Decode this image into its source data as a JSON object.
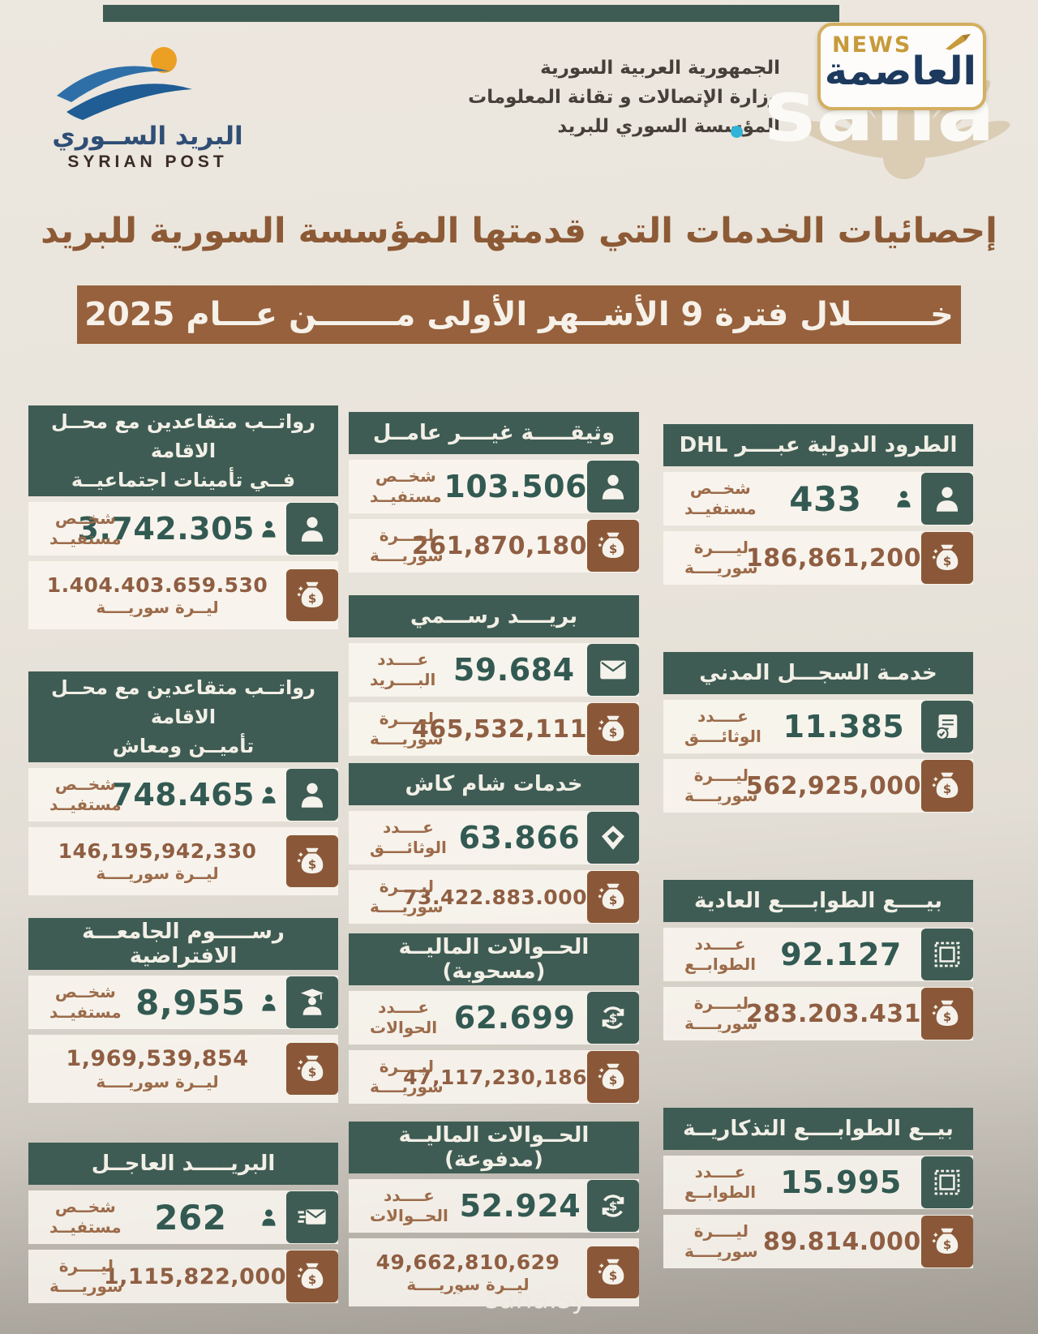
{
  "logo": {
    "arabic": "البريد الســوري",
    "english": "SYRIAN POST"
  },
  "gov": {
    "line1": "الجمهورية العربية السورية",
    "line2": "وزارة الإتصالات و تقانة المعلومات",
    "line3": "المؤسسة السوري للبريد"
  },
  "watermark": {
    "sana": "sana",
    "news": "NEWS",
    "alasima": "العاصمة"
  },
  "title": {
    "line1": "إحصائيات الخدمات التي قدمتها المؤسسة السورية للبريد",
    "line2": "خـــــــلال فترة 9 الأشــهر الأولى مـــــــن عـــام 2025"
  },
  "footer": {
    "link": "sana.sy"
  },
  "colors": {
    "teal": "#3e5c54",
    "brown": "#8a5838",
    "title_brown": "#8d5a36",
    "bar_brown": "#96613c"
  },
  "columns": [
    {
      "id": "left",
      "cards": [
        {
          "header": [
            "رواتــب متقاعدين مع محــل الاقامة",
            "فــي تأمينات اجتماعيــة"
          ],
          "rows": [
            {
              "label": [
                "شخــص",
                "مستفيــد"
              ],
              "value": "3.742.305",
              "value_color": "teal",
              "sub": null,
              "person_glyph": true,
              "icon": "person-icon",
              "icon_bg": "teal"
            },
            {
              "label": null,
              "value": "1.404.403.659.530",
              "value_color": "brown",
              "sub": "ليــرة سوريــــة",
              "person_glyph": false,
              "icon": "money-bag-icon",
              "icon_bg": "brown"
            }
          ]
        },
        {
          "header": [
            "رواتــب متقاعدين مع محــل الاقامة",
            "تأميــن ومعاش"
          ],
          "rows": [
            {
              "label": [
                "شخــص",
                "مستفيــد"
              ],
              "value": "748.465",
              "value_color": "teal",
              "sub": null,
              "person_glyph": true,
              "icon": "person-icon",
              "icon_bg": "teal"
            },
            {
              "label": null,
              "value": "146,195,942,330",
              "value_color": "brown",
              "sub": "ليــرة سوريــــة",
              "person_glyph": false,
              "icon": "money-bag-icon",
              "icon_bg": "brown"
            }
          ]
        },
        {
          "header": [
            "رســـــوم الجامعـــة الافتراضية"
          ],
          "rows": [
            {
              "label": [
                "شخــص",
                "مستفيــد"
              ],
              "value": "8,955",
              "value_color": "teal",
              "sub": null,
              "person_glyph": true,
              "icon": "graduate-icon",
              "icon_bg": "teal"
            },
            {
              "label": null,
              "value": "1,969,539,854",
              "value_color": "brown",
              "sub": "ليــرة سوريــــة",
              "person_glyph": false,
              "icon": "money-bag-icon",
              "icon_bg": "brown"
            }
          ]
        },
        {
          "header": [
            "البريـــــد العاجــل"
          ],
          "rows": [
            {
              "label": [
                "شخــص",
                "مستفيــد"
              ],
              "value": "262",
              "value_color": "teal",
              "sub": null,
              "person_glyph": true,
              "icon": "express-mail-icon",
              "icon_bg": "teal"
            },
            {
              "label": [
                "ليــــرة",
                "سوريــــة"
              ],
              "value": "1,115,822,000",
              "value_color": "brown",
              "sub": null,
              "person_glyph": false,
              "icon": "money-bag-icon",
              "icon_bg": "brown"
            }
          ]
        }
      ]
    },
    {
      "id": "middle",
      "cards": [
        {
          "header": [
            "وثيقـــــة غيــــر عامــل"
          ],
          "rows": [
            {
              "label": [
                "شخــص",
                "مستفيــد"
              ],
              "value": "103.506",
              "value_color": "teal",
              "sub": null,
              "person_glyph": false,
              "icon": "person-icon",
              "icon_bg": "teal"
            },
            {
              "label": [
                "ليــــرة",
                "سوريــــة"
              ],
              "value": "261,870,180",
              "value_color": "brown",
              "sub": null,
              "person_glyph": false,
              "icon": "money-bag-icon",
              "icon_bg": "brown"
            }
          ]
        },
        {
          "header": [
            "بريــــد رســـمي"
          ],
          "rows": [
            {
              "label": [
                "عــــدد",
                "البــــريد"
              ],
              "value": "59.684",
              "value_color": "teal",
              "sub": null,
              "person_glyph": false,
              "icon": "envelope-icon",
              "icon_bg": "teal"
            },
            {
              "label": [
                "ليــــرة",
                "سوريــــة"
              ],
              "value": "465,532,111",
              "value_color": "brown",
              "sub": null,
              "person_glyph": false,
              "icon": "money-bag-icon",
              "icon_bg": "brown"
            }
          ]
        },
        {
          "header": [
            "خدمات شام كاش"
          ],
          "rows": [
            {
              "label": [
                "عــــدد",
                "الوثائــــق"
              ],
              "value": "63.866",
              "value_color": "teal",
              "sub": null,
              "person_glyph": false,
              "icon": "sham-cash-icon",
              "icon_bg": "teal"
            },
            {
              "label": [
                "ليــــرة",
                "سوريــــة"
              ],
              "value": "73.422.883.000",
              "value_color": "brown",
              "sub": null,
              "person_glyph": false,
              "icon": "money-bag-icon",
              "icon_bg": "brown"
            }
          ]
        },
        {
          "header": [
            "الحــوالات الماليــة (مسحوبة)"
          ],
          "rows": [
            {
              "label": [
                "عــــدد",
                "الحوالات"
              ],
              "value": "62.699",
              "value_color": "teal",
              "sub": null,
              "person_glyph": false,
              "icon": "transfer-icon",
              "icon_bg": "teal"
            },
            {
              "label": [
                "ليــــرة",
                "سوريــــة"
              ],
              "value": "47,117,230,186",
              "value_color": "brown",
              "sub": null,
              "person_glyph": false,
              "icon": "money-bag-icon",
              "icon_bg": "brown"
            }
          ]
        },
        {
          "header": [
            "الحــوالات الماليــة (مدفوعة)"
          ],
          "rows": [
            {
              "label": [
                "عــــدد",
                "الحــوالات"
              ],
              "value": "52.924",
              "value_color": "teal",
              "sub": null,
              "person_glyph": false,
              "icon": "transfer-icon",
              "icon_bg": "teal"
            },
            {
              "label": null,
              "value": "49,662,810,629",
              "value_color": "brown",
              "sub": "ليــرة سوريــــة",
              "person_glyph": false,
              "icon": "money-bag-icon",
              "icon_bg": "brown"
            }
          ]
        }
      ]
    },
    {
      "id": "right",
      "cards": [
        {
          "header": [
            "الطرود الدولية عبــــر DHL"
          ],
          "rows": [
            {
              "label": [
                "شخــص",
                "مستفيــد"
              ],
              "value": "433",
              "value_color": "teal",
              "sub": null,
              "person_glyph": true,
              "icon": "person-icon",
              "icon_bg": "teal"
            },
            {
              "label": [
                "ليــــرة",
                "سوريــــة"
              ],
              "value": "186,861,200",
              "value_color": "brown",
              "sub": null,
              "person_glyph": false,
              "icon": "money-bag-icon",
              "icon_bg": "brown"
            }
          ]
        },
        {
          "header": [
            "خدمـة السجـــل المدني"
          ],
          "rows": [
            {
              "label": [
                "عــــدد",
                "الوثائــــق"
              ],
              "value": "11.385",
              "value_color": "teal",
              "sub": null,
              "person_glyph": false,
              "icon": "document-check-icon",
              "icon_bg": "teal"
            },
            {
              "label": [
                "ليــــرة",
                "سوريــــة"
              ],
              "value": "562,925,000",
              "value_color": "brown",
              "sub": null,
              "person_glyph": false,
              "icon": "money-bag-icon",
              "icon_bg": "brown"
            }
          ]
        },
        {
          "header": [
            "بيــــع الطوابــــع العادية"
          ],
          "rows": [
            {
              "label": [
                "عــــدد",
                "الطوابــع"
              ],
              "value": "92.127",
              "value_color": "teal",
              "sub": null,
              "person_glyph": false,
              "icon": "stamp-icon",
              "icon_bg": "teal"
            },
            {
              "label": [
                "ليــــرة",
                "سوريــــة"
              ],
              "value": "283.203.431",
              "value_color": "brown",
              "sub": null,
              "person_glyph": false,
              "icon": "money-bag-icon",
              "icon_bg": "brown"
            }
          ]
        },
        {
          "header": [
            "بيــع الطوابــــع التذكاريــة"
          ],
          "rows": [
            {
              "label": [
                "عــــدد",
                "الطوابــع"
              ],
              "value": "15.995",
              "value_color": "teal",
              "sub": null,
              "person_glyph": false,
              "icon": "stamp-icon",
              "icon_bg": "teal"
            },
            {
              "label": [
                "ليــــرة",
                "سوريــــة"
              ],
              "value": "89.814.000",
              "value_color": "brown",
              "sub": null,
              "person_glyph": false,
              "icon": "money-bag-icon",
              "icon_bg": "brown"
            }
          ]
        }
      ]
    }
  ]
}
